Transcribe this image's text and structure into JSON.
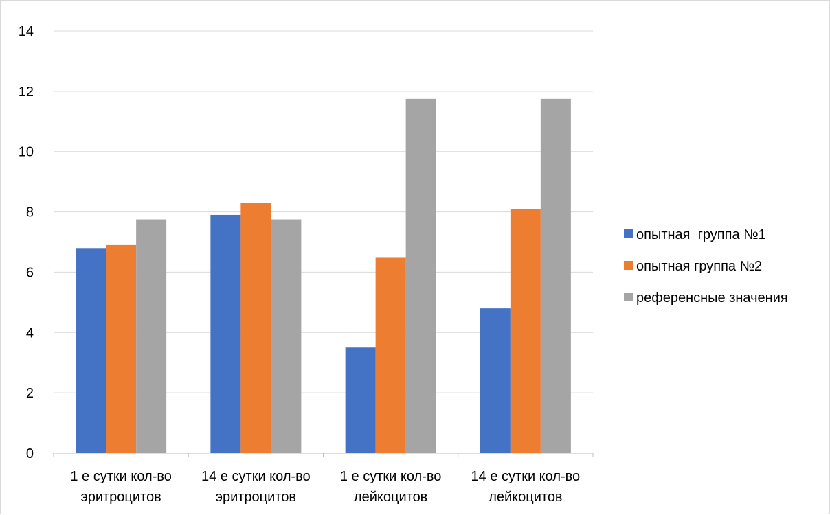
{
  "chart_data": {
    "type": "bar",
    "categories": [
      [
        "1 е сутки кол-во",
        "эритроцитов"
      ],
      [
        "14 е сутки кол-во",
        "эритроцитов"
      ],
      [
        "1 е сутки кол-во",
        "лейкоцитов"
      ],
      [
        "14 е сутки кол-во",
        "лейкоцитов"
      ]
    ],
    "series": [
      {
        "name": "опытная  группа №1",
        "color": "#4472C4",
        "values": [
          6.8,
          7.9,
          3.5,
          4.8
        ]
      },
      {
        "name": "опытная группа №2",
        "color": "#ED7D31",
        "values": [
          6.9,
          8.3,
          6.5,
          8.1
        ]
      },
      {
        "name": "референсные значения",
        "color": "#A5A5A5",
        "values": [
          7.75,
          7.75,
          11.75,
          11.75
        ]
      }
    ],
    "title": "",
    "xlabel": "",
    "ylabel": "",
    "ylim": [
      0,
      14
    ],
    "yticks": [
      0,
      2,
      4,
      6,
      8,
      10,
      12,
      14
    ],
    "grid": true,
    "legend_position": "right"
  }
}
